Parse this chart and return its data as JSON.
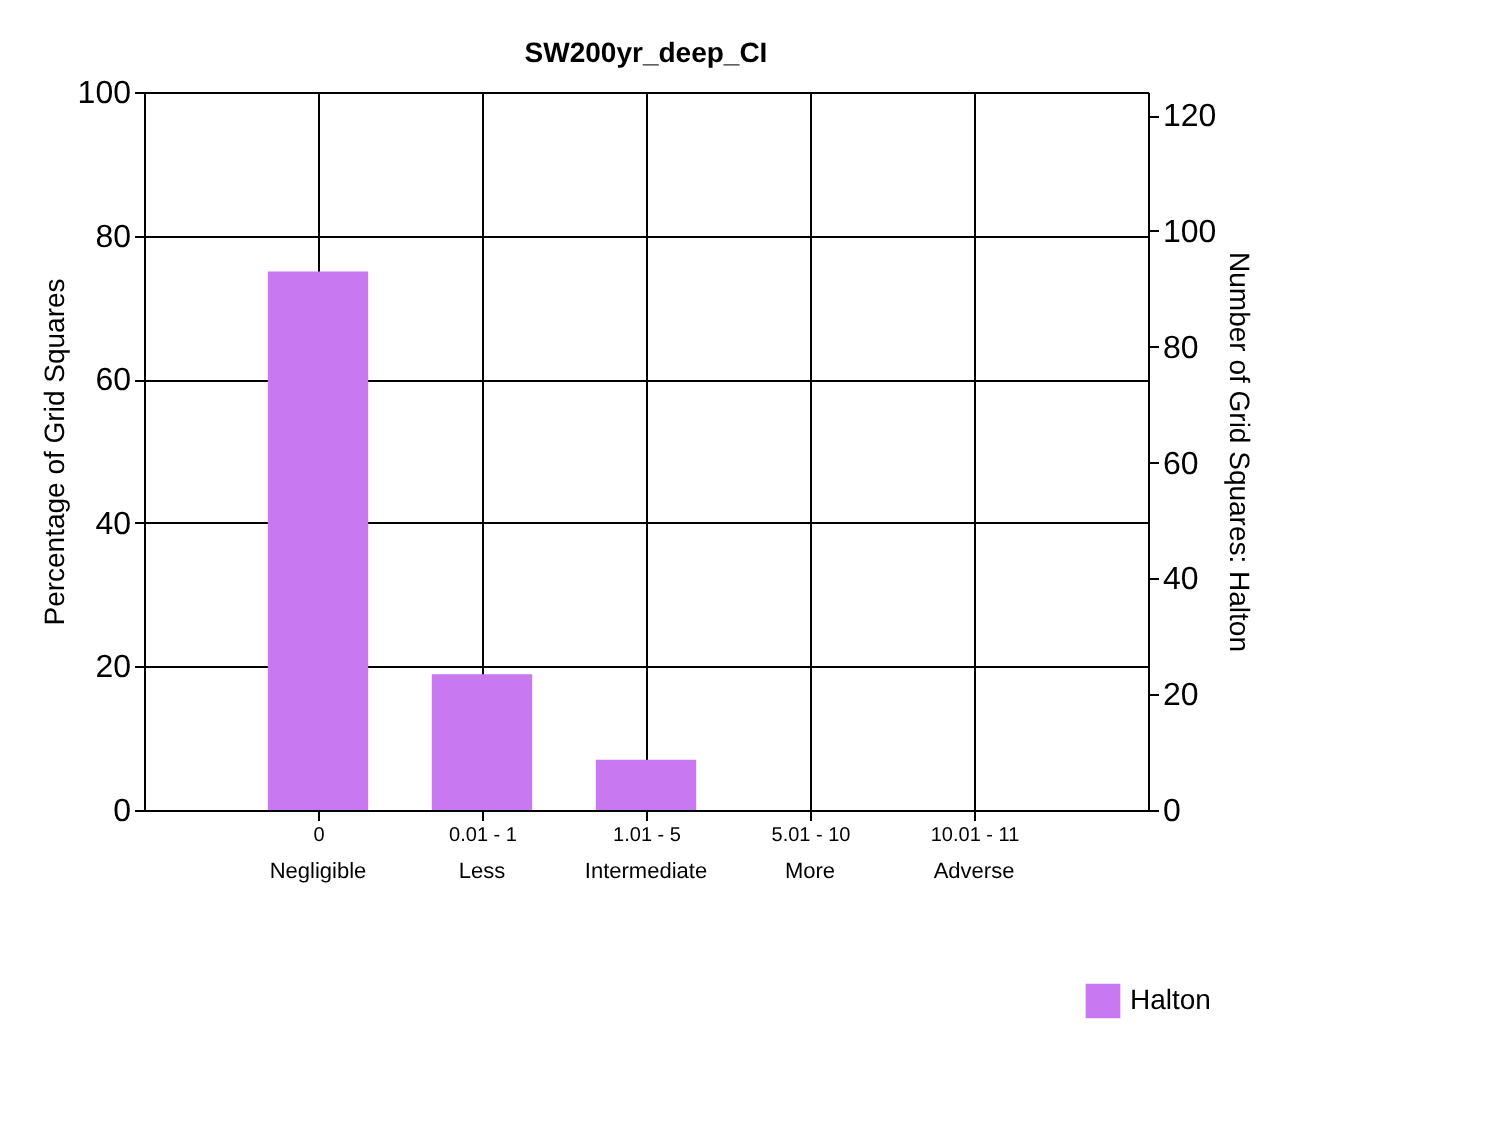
{
  "chart_data": {
    "type": "bar",
    "title": "SW200yr_deep_CI",
    "categories": [
      "0",
      "0.01 - 1",
      "1.01 - 5",
      "5.01 - 10",
      "10.01 - 11"
    ],
    "series": [
      {
        "name": "Halton",
        "color": "#c878f0",
        "values": [
          75,
          18.9,
          7,
          0,
          0
        ]
      }
    ],
    "ylabel": "Percentage of Grid Squares",
    "y2label": "Number of Grid Squares: Halton",
    "ylim": [
      0,
      100
    ],
    "yticks": [
      0,
      20,
      40,
      60,
      80,
      100
    ],
    "y2lim": [
      0,
      124
    ],
    "y2ticks": [
      0,
      20,
      40,
      60,
      80,
      100,
      120
    ],
    "annotations": [
      "Negligible",
      "Less",
      "Intermediate",
      "More",
      "Adverse"
    ],
    "grid": true,
    "legend": "bottom right"
  }
}
